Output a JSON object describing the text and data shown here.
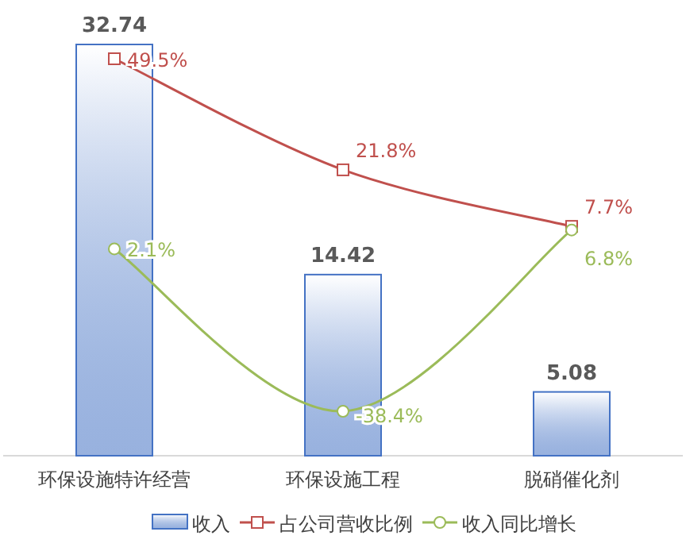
{
  "chart_data": {
    "type": "bar",
    "categories": [
      "环保设施特许经营",
      "环保设施工程",
      "脱硝催化剂"
    ],
    "series": [
      {
        "name": "收入",
        "color": "#4472c4",
        "values": [
          32.74,
          14.42,
          5.08
        ],
        "value_labels": [
          "32.74",
          "14.42",
          "5.08"
        ]
      },
      {
        "name": "占公司营收比例",
        "type": "line",
        "axis": "y2",
        "color": "#c0504d",
        "marker": "square",
        "values": [
          49.5,
          21.8,
          7.7
        ],
        "value_labels": [
          "49.5%",
          "21.8%",
          "7.7%"
        ]
      },
      {
        "name": "收入同比增长",
        "type": "line",
        "axis": "y2",
        "color": "#9bbb59",
        "marker": "circle",
        "values": [
          2.1,
          -38.4,
          6.8
        ],
        "value_labels": [
          "2.1%",
          "-38.4%",
          "6.8%"
        ]
      }
    ],
    "legend": "bottom"
  }
}
